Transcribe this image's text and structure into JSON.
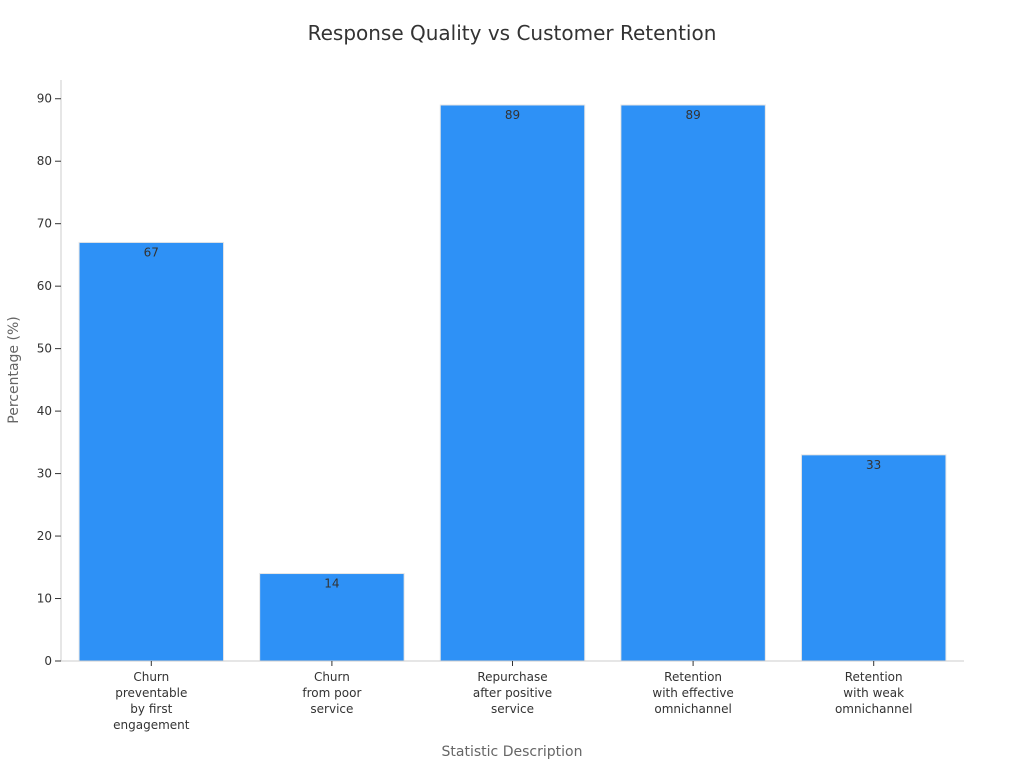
{
  "chart_data": {
    "type": "bar",
    "title": "Response Quality vs Customer Retention",
    "xlabel": "Statistic Description",
    "ylabel": "Percentage (%)",
    "categories": [
      [
        "Churn",
        "preventable",
        "by first",
        "engagement"
      ],
      [
        "Churn",
        "from poor",
        "service"
      ],
      [
        "Repurchase",
        "after positive",
        "service"
      ],
      [
        "Retention",
        "with effective",
        "omnichannel"
      ],
      [
        "Retention",
        "with weak",
        "omnichannel"
      ]
    ],
    "values": [
      67,
      14,
      89,
      89,
      33
    ],
    "value_labels": [
      "67",
      "14",
      "89",
      "89",
      "33"
    ],
    "ylim": [
      0,
      93
    ],
    "yticks": [
      0,
      10,
      20,
      30,
      40,
      50,
      60,
      70,
      80,
      90
    ],
    "grid": false,
    "legend": "none",
    "bar_color": "#2e91f6",
    "bar_edge_color": "#e6e6e6"
  }
}
